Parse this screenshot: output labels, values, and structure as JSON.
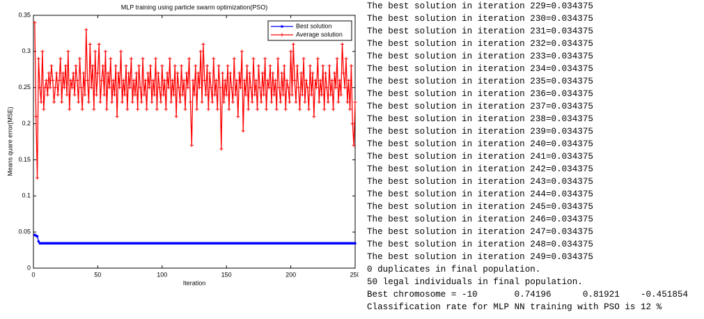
{
  "chart_data": {
    "type": "line",
    "title": "MLP training using particle swarm optimization(PSO)",
    "x_label": "Iteration",
    "y_label": "Means quare error(MSE)",
    "xlim": [
      0,
      250
    ],
    "xticks": [
      0,
      50,
      100,
      150,
      200,
      250
    ],
    "ylim": [
      0,
      0.35
    ],
    "yticks": [
      0,
      0.05,
      0.1,
      0.15,
      0.2,
      0.25,
      0.3,
      0.35
    ],
    "legend": "upper-right",
    "grid": false,
    "x": [
      1,
      2,
      3,
      4,
      5,
      6,
      7,
      8,
      9,
      10,
      11,
      12,
      13,
      14,
      15,
      16,
      17,
      18,
      19,
      20,
      21,
      22,
      23,
      24,
      25,
      26,
      27,
      28,
      29,
      30,
      31,
      32,
      33,
      34,
      35,
      36,
      37,
      38,
      39,
      40,
      41,
      42,
      43,
      44,
      45,
      46,
      47,
      48,
      49,
      50,
      51,
      52,
      53,
      54,
      55,
      56,
      57,
      58,
      59,
      60,
      61,
      62,
      63,
      64,
      65,
      66,
      67,
      68,
      69,
      70,
      71,
      72,
      73,
      74,
      75,
      76,
      77,
      78,
      79,
      80,
      81,
      82,
      83,
      84,
      85,
      86,
      87,
      88,
      89,
      90,
      91,
      92,
      93,
      94,
      95,
      96,
      97,
      98,
      99,
      100,
      101,
      102,
      103,
      104,
      105,
      106,
      107,
      108,
      109,
      110,
      111,
      112,
      113,
      114,
      115,
      116,
      117,
      118,
      119,
      120,
      121,
      122,
      123,
      124,
      125,
      126,
      127,
      128,
      129,
      130,
      131,
      132,
      133,
      134,
      135,
      136,
      137,
      138,
      139,
      140,
      141,
      142,
      143,
      144,
      145,
      146,
      147,
      148,
      149,
      150,
      151,
      152,
      153,
      154,
      155,
      156,
      157,
      158,
      159,
      160,
      161,
      162,
      163,
      164,
      165,
      166,
      167,
      168,
      169,
      170,
      171,
      172,
      173,
      174,
      175,
      176,
      177,
      178,
      179,
      180,
      181,
      182,
      183,
      184,
      185,
      186,
      187,
      188,
      189,
      190,
      191,
      192,
      193,
      194,
      195,
      196,
      197,
      198,
      199,
      200,
      201,
      202,
      203,
      204,
      205,
      206,
      207,
      208,
      209,
      210,
      211,
      212,
      213,
      214,
      215,
      216,
      217,
      218,
      219,
      220,
      221,
      222,
      223,
      224,
      225,
      226,
      227,
      228,
      229,
      230,
      231,
      232,
      233,
      234,
      235,
      236,
      237,
      238,
      239,
      240,
      241,
      242,
      243,
      244,
      245,
      246,
      247,
      248,
      249,
      250
    ],
    "series": [
      {
        "name": "Best solution",
        "color": "#0000ff",
        "marker": "dot",
        "values": [
          0.046,
          0.045,
          0.044,
          0.037,
          0.034375,
          0.034375,
          0.034375,
          0.034375,
          0.034375,
          0.034375,
          0.034375,
          0.034375,
          0.034375,
          0.034375,
          0.034375,
          0.034375,
          0.034375,
          0.034375,
          0.034375,
          0.034375,
          0.034375,
          0.034375,
          0.034375,
          0.034375,
          0.034375,
          0.034375,
          0.034375,
          0.034375,
          0.034375,
          0.034375,
          0.034375,
          0.034375,
          0.034375,
          0.034375,
          0.034375,
          0.034375,
          0.034375,
          0.034375,
          0.034375,
          0.034375,
          0.034375,
          0.034375,
          0.034375,
          0.034375,
          0.034375,
          0.034375,
          0.034375,
          0.034375,
          0.034375,
          0.034375,
          0.034375,
          0.034375,
          0.034375,
          0.034375,
          0.034375,
          0.034375,
          0.034375,
          0.034375,
          0.034375,
          0.034375,
          0.034375,
          0.034375,
          0.034375,
          0.034375,
          0.034375,
          0.034375,
          0.034375,
          0.034375,
          0.034375,
          0.034375,
          0.034375,
          0.034375,
          0.034375,
          0.034375,
          0.034375,
          0.034375,
          0.034375,
          0.034375,
          0.034375,
          0.034375,
          0.034375,
          0.034375,
          0.034375,
          0.034375,
          0.034375,
          0.034375,
          0.034375,
          0.034375,
          0.034375,
          0.034375,
          0.034375,
          0.034375,
          0.034375,
          0.034375,
          0.034375,
          0.034375,
          0.034375,
          0.034375,
          0.034375,
          0.034375,
          0.034375,
          0.034375,
          0.034375,
          0.034375,
          0.034375,
          0.034375,
          0.034375,
          0.034375,
          0.034375,
          0.034375,
          0.034375,
          0.034375,
          0.034375,
          0.034375,
          0.034375,
          0.034375,
          0.034375,
          0.034375,
          0.034375,
          0.034375,
          0.034375,
          0.034375,
          0.034375,
          0.034375,
          0.034375,
          0.034375,
          0.034375,
          0.034375,
          0.034375,
          0.034375,
          0.034375,
          0.034375,
          0.034375,
          0.034375,
          0.034375,
          0.034375,
          0.034375,
          0.034375,
          0.034375,
          0.034375,
          0.034375,
          0.034375,
          0.034375,
          0.034375,
          0.034375,
          0.034375,
          0.034375,
          0.034375,
          0.034375,
          0.034375,
          0.034375,
          0.034375,
          0.034375,
          0.034375,
          0.034375,
          0.034375,
          0.034375,
          0.034375,
          0.034375,
          0.034375,
          0.034375,
          0.034375,
          0.034375,
          0.034375,
          0.034375,
          0.034375,
          0.034375,
          0.034375,
          0.034375,
          0.034375,
          0.034375,
          0.034375,
          0.034375,
          0.034375,
          0.034375,
          0.034375,
          0.034375,
          0.034375,
          0.034375,
          0.034375,
          0.034375,
          0.034375,
          0.034375,
          0.034375,
          0.034375,
          0.034375,
          0.034375,
          0.034375,
          0.034375,
          0.034375,
          0.034375,
          0.034375,
          0.034375,
          0.034375,
          0.034375,
          0.034375,
          0.034375,
          0.034375,
          0.034375,
          0.034375,
          0.034375,
          0.034375,
          0.034375,
          0.034375,
          0.034375,
          0.034375,
          0.034375,
          0.034375,
          0.034375,
          0.034375,
          0.034375,
          0.034375,
          0.034375,
          0.034375,
          0.034375,
          0.034375,
          0.034375,
          0.034375,
          0.034375,
          0.034375,
          0.034375,
          0.034375,
          0.034375,
          0.034375,
          0.034375,
          0.034375,
          0.034375,
          0.034375,
          0.034375,
          0.034375,
          0.034375,
          0.034375,
          0.034375,
          0.034375,
          0.034375,
          0.034375,
          0.034375,
          0.034375,
          0.034375,
          0.034375,
          0.034375,
          0.034375,
          0.034375,
          0.034375,
          0.034375,
          0.034375,
          0.034375,
          0.034375,
          0.034375,
          0.034375
        ]
      },
      {
        "name": "Average solution",
        "color": "#ff0000",
        "marker": "plus",
        "values": [
          0.34,
          0.21,
          0.125,
          0.29,
          0.25,
          0.23,
          0.3,
          0.22,
          0.25,
          0.26,
          0.24,
          0.27,
          0.25,
          0.28,
          0.26,
          0.23,
          0.25,
          0.27,
          0.24,
          0.26,
          0.29,
          0.23,
          0.27,
          0.25,
          0.28,
          0.24,
          0.3,
          0.22,
          0.26,
          0.25,
          0.27,
          0.24,
          0.28,
          0.26,
          0.23,
          0.29,
          0.25,
          0.22,
          0.27,
          0.24,
          0.33,
          0.26,
          0.23,
          0.31,
          0.25,
          0.28,
          0.22,
          0.3,
          0.24,
          0.27,
          0.31,
          0.23,
          0.26,
          0.28,
          0.24,
          0.3,
          0.22,
          0.27,
          0.25,
          0.29,
          0.23,
          0.26,
          0.24,
          0.28,
          0.21,
          0.27,
          0.25,
          0.3,
          0.23,
          0.26,
          0.24,
          0.28,
          0.22,
          0.27,
          0.25,
          0.29,
          0.23,
          0.26,
          0.24,
          0.27,
          0.22,
          0.28,
          0.25,
          0.23,
          0.29,
          0.24,
          0.26,
          0.22,
          0.27,
          0.25,
          0.28,
          0.23,
          0.26,
          0.24,
          0.29,
          0.22,
          0.27,
          0.25,
          0.23,
          0.28,
          0.24,
          0.26,
          0.22,
          0.27,
          0.25,
          0.29,
          0.23,
          0.26,
          0.24,
          0.28,
          0.21,
          0.27,
          0.25,
          0.23,
          0.28,
          0.24,
          0.26,
          0.22,
          0.27,
          0.25,
          0.29,
          0.23,
          0.17,
          0.26,
          0.24,
          0.28,
          0.22,
          0.27,
          0.25,
          0.3,
          0.23,
          0.31,
          0.26,
          0.24,
          0.28,
          0.22,
          0.27,
          0.25,
          0.23,
          0.29,
          0.24,
          0.26,
          0.22,
          0.28,
          0.25,
          0.165,
          0.27,
          0.23,
          0.26,
          0.24,
          0.28,
          0.22,
          0.27,
          0.25,
          0.23,
          0.29,
          0.24,
          0.26,
          0.21,
          0.27,
          0.25,
          0.3,
          0.19,
          0.26,
          0.24,
          0.28,
          0.22,
          0.27,
          0.25,
          0.23,
          0.29,
          0.24,
          0.26,
          0.22,
          0.28,
          0.25,
          0.23,
          0.27,
          0.24,
          0.29,
          0.22,
          0.26,
          0.25,
          0.28,
          0.23,
          0.27,
          0.24,
          0.26,
          0.22,
          0.29,
          0.25,
          0.23,
          0.27,
          0.24,
          0.28,
          0.22,
          0.26,
          0.25,
          0.23,
          0.3,
          0.24,
          0.31,
          0.26,
          0.23,
          0.28,
          0.25,
          0.22,
          0.27,
          0.24,
          0.29,
          0.23,
          0.26,
          0.25,
          0.22,
          0.28,
          0.24,
          0.27,
          0.21,
          0.26,
          0.25,
          0.29,
          0.23,
          0.26,
          0.24,
          0.28,
          0.22,
          0.27,
          0.25,
          0.23,
          0.28,
          0.24,
          0.26,
          0.22,
          0.27,
          0.25,
          0.29,
          0.23,
          0.26,
          0.24,
          0.31,
          0.27,
          0.25,
          0.29,
          0.23,
          0.26,
          0.22,
          0.28,
          0.2,
          0.17,
          0.23
        ]
      }
    ]
  },
  "console": {
    "lines": [
      "The best solution in iteration 229=0.034375",
      "The best solution in iteration 230=0.034375",
      "The best solution in iteration 231=0.034375",
      "The best solution in iteration 232=0.034375",
      "The best solution in iteration 233=0.034375",
      "The best solution in iteration 234=0.034375",
      "The best solution in iteration 235=0.034375",
      "The best solution in iteration 236=0.034375",
      "The best solution in iteration 237=0.034375",
      "The best solution in iteration 238=0.034375",
      "The best solution in iteration 239=0.034375",
      "The best solution in iteration 240=0.034375",
      "The best solution in iteration 241=0.034375",
      "The best solution in iteration 242=0.034375",
      "The best solution in iteration 243=0.034375",
      "The best solution in iteration 244=0.034375",
      "The best solution in iteration 245=0.034375",
      "The best solution in iteration 246=0.034375",
      "The best solution in iteration 247=0.034375",
      "The best solution in iteration 248=0.034375",
      "The best solution in iteration 249=0.034375",
      "0 duplicates in final population.",
      "50 legal individuals in final population.",
      "Best chromosome = -10       0.74196      0.81921    -0.451854",
      "Classification rate for MLP NN training with PSO is 12 %"
    ]
  }
}
